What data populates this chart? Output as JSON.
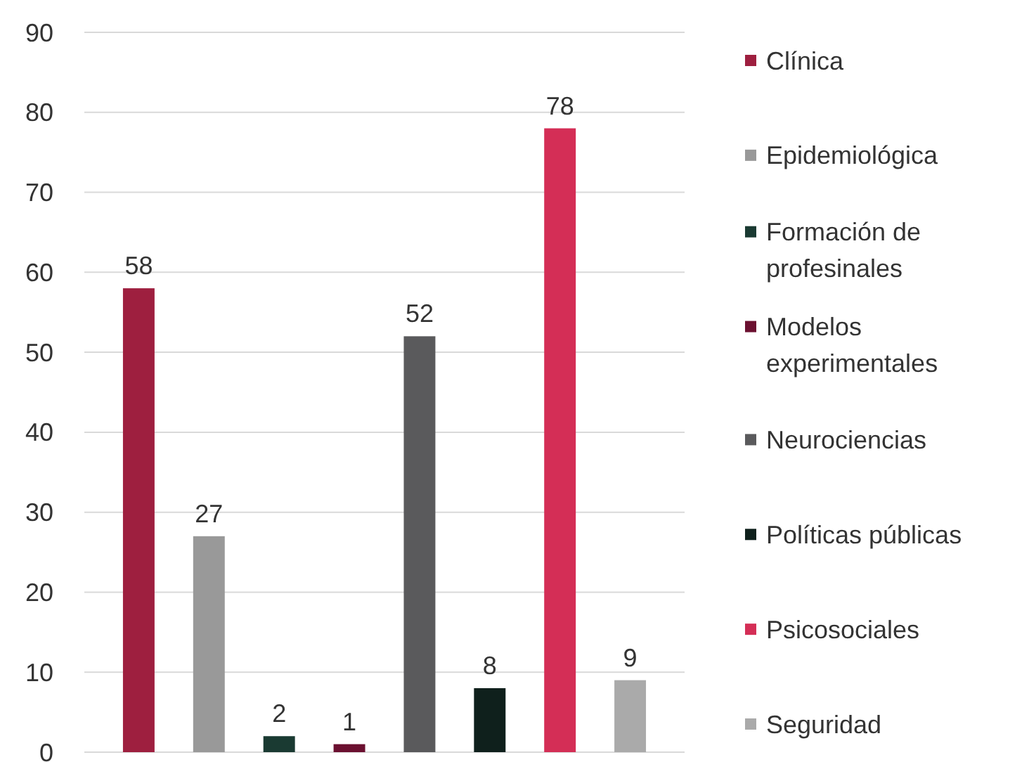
{
  "chart_data": {
    "type": "bar",
    "categories": [
      null
    ],
    "series": [
      {
        "name": "Clínica",
        "color": "#9e1f3f",
        "values": [
          58
        ]
      },
      {
        "name": "Epidemiológica",
        "color": "#999999",
        "values": [
          27
        ]
      },
      {
        "name": "Formación de profesinales",
        "color": "#1a3a32",
        "values": [
          2
        ]
      },
      {
        "name": "Modelos experimentales",
        "color": "#6b1030",
        "values": [
          1
        ]
      },
      {
        "name": "Neurociencias",
        "color": "#5a5a5c",
        "values": [
          52
        ]
      },
      {
        "name": "Políticas públicas",
        "color": "#0f201c",
        "values": [
          8
        ]
      },
      {
        "name": "Psicosociales",
        "color": "#d42e56",
        "values": [
          78
        ]
      },
      {
        "name": "Seguridad",
        "color": "#aaaaaa",
        "values": [
          9
        ]
      }
    ],
    "ylim": [
      0,
      90
    ],
    "yticks": [
      0,
      10,
      20,
      30,
      40,
      50,
      60,
      70,
      80,
      90
    ],
    "grid": "y",
    "legend": "right",
    "data_labels": true
  }
}
